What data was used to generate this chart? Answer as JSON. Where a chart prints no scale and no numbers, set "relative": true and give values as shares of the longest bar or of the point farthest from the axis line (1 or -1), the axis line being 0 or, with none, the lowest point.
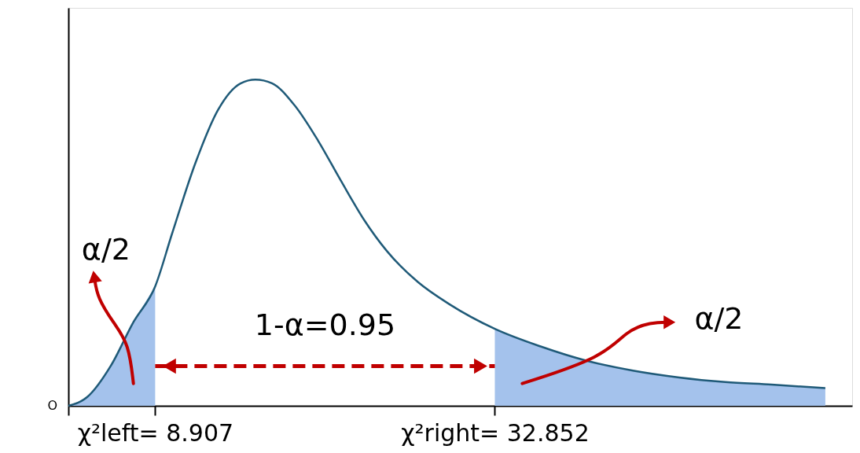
{
  "chart_data": {
    "type": "line",
    "relative": true,
    "series": [
      {
        "type": "area",
        "color": "#a4c2ec",
        "x": [
          2.79,
          4.12,
          5.77,
          7.38,
          8.907
        ],
        "values": [
          0,
          0.027,
          0.122,
          0.257,
          0.366
        ]
      },
      {
        "type": "area",
        "color": "#a4c2ec",
        "x": [
          32.852,
          36.08,
          39.34,
          42.59,
          45.85,
          49.1,
          52.36,
          56.15
        ],
        "values": [
          0.236,
          0.182,
          0.138,
          0.108,
          0.087,
          0.073,
          0.065,
          0.054
        ]
      },
      {
        "type": "line",
        "color": "#c00000",
        "line_style": "dashed",
        "x": [
          8.907,
          32.852
        ],
        "values": [
          0.122,
          0.122
        ]
      },
      {
        "color": "#1f5a78",
        "x": [
          2.79,
          4.12,
          5.77,
          7.38,
          8.907,
          10.1,
          11.75,
          13.35,
          14.95,
          15.97,
          17.14,
          18.74,
          20.39,
          21.99,
          23.65,
          25.25,
          27.44,
          29.63,
          32.852,
          36.08,
          39.34,
          42.59,
          45.85,
          49.1,
          52.36,
          56.15
        ],
        "values": [
          0,
          0.027,
          0.122,
          0.257,
          0.366,
          0.528,
          0.745,
          0.908,
          0.989,
          1.0,
          0.989,
          0.921,
          0.813,
          0.691,
          0.569,
          0.474,
          0.379,
          0.312,
          0.236,
          0.182,
          0.138,
          0.108,
          0.087,
          0.073,
          0.065,
          0.054
        ]
      }
    ],
    "xlim": [
      2.79,
      58.04
    ],
    "xticks": [
      {
        "value": 2.79,
        "label": null
      },
      {
        "value": 8.907,
        "label": "χ²left= 8.907"
      },
      {
        "value": 32.852,
        "label": "χ²right= 32.852"
      }
    ],
    "annotations": [
      "O",
      "α/2",
      "1-α=0.95",
      "α/2"
    ],
    "grid": false
  }
}
